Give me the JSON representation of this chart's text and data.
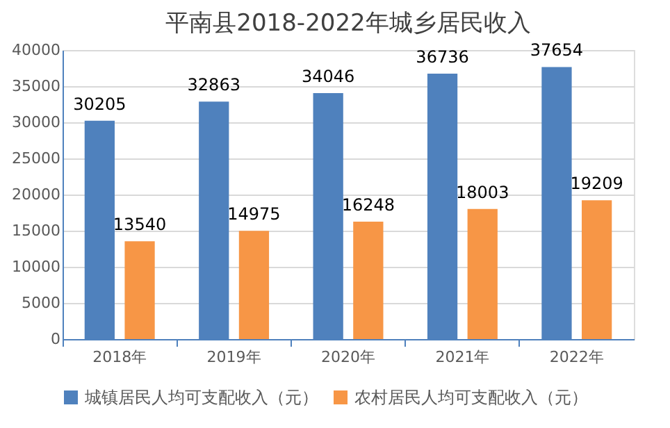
{
  "chart_data": {
    "type": "bar",
    "title": "平南县2018-2022年城乡居民收入",
    "categories": [
      "2018年",
      "2019年",
      "2020年",
      "2021年",
      "2022年"
    ],
    "series": [
      {
        "name": "城镇居民人均可支配收入（元）",
        "color": "#4f81bd",
        "values": [
          30205,
          32863,
          34046,
          36736,
          37654
        ]
      },
      {
        "name": "农村居民人均可支配收入（元）",
        "color": "#f79646",
        "values": [
          13540,
          14975,
          16248,
          18003,
          19209
        ]
      }
    ],
    "ylim": [
      0,
      40000
    ],
    "yticks": [
      0,
      5000,
      10000,
      15000,
      20000,
      25000,
      30000,
      35000,
      40000
    ],
    "grid": "y",
    "legend": "bottom",
    "data_labels": true
  }
}
